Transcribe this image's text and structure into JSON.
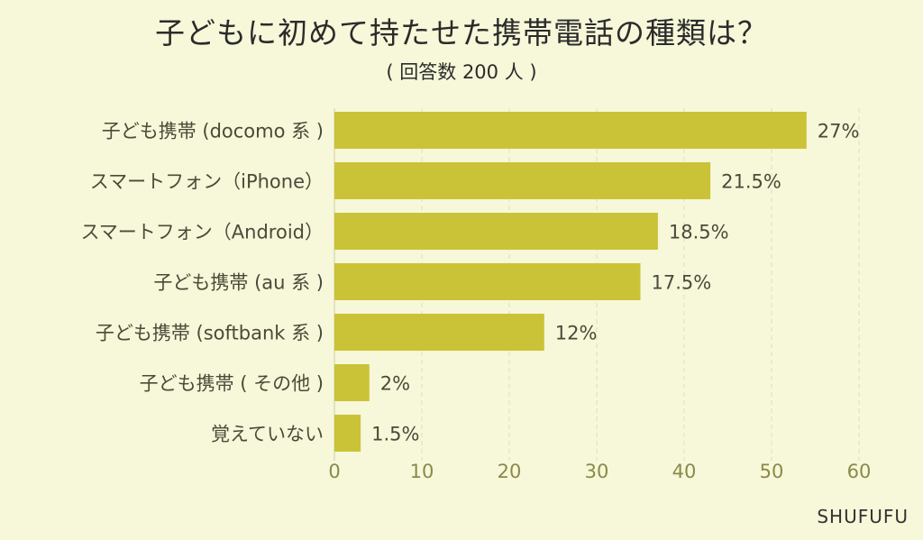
{
  "chart_data": {
    "type": "bar",
    "orientation": "horizontal",
    "title": "子どもに初めて持たせた携帯電話の種類は？",
    "subtitle": "( 回答数 200 人 )",
    "categories": [
      "子ども携帯 (docomo 系 )",
      "スマートフォン（iPhone）",
      "スマートフォン（Android）",
      "子ども携帯 (au 系 )",
      "子ども携帯 (softbank 系 )",
      "子ども携帯 ( その他 )",
      "覚えていない"
    ],
    "values": [
      54,
      43,
      37,
      35,
      24,
      4,
      3
    ],
    "value_labels": [
      "27%",
      "21.5%",
      "18.5%",
      "17.5%",
      "12%",
      "2%",
      "1.5%"
    ],
    "xlim": [
      0,
      60
    ],
    "xticks": [
      0,
      10,
      20,
      30,
      40,
      50,
      60
    ],
    "xlabel": "",
    "ylabel": "",
    "grid": true,
    "bar_color": "#cbc337"
  },
  "watermark": "SHUFUFU"
}
